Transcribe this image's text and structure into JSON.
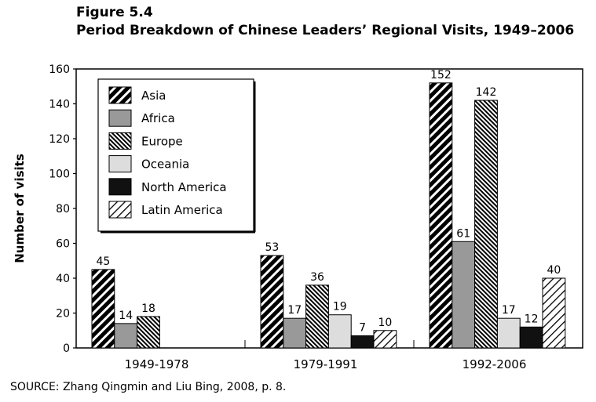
{
  "figure": {
    "label": "Figure 5.4",
    "title": "Period Breakdown of Chinese Leaders’ Regional Visits, 1949–2006",
    "source": "SOURCE: Zhang Qingmin and Liu Bing, 2008, p. 8."
  },
  "chart_data": {
    "type": "bar",
    "title": "Period Breakdown of Chinese Leaders’ Regional Visits, 1949–2006",
    "xlabel": "",
    "ylabel": "Number of visits",
    "ylim": [
      0,
      160
    ],
    "yticks": [
      0,
      20,
      40,
      60,
      80,
      100,
      120,
      140,
      160
    ],
    "categories": [
      "1949-1978",
      "1979-1991",
      "1992-2006"
    ],
    "legend_position": "top-left",
    "grid": false,
    "series": [
      {
        "name": "Asia",
        "fill": "diag-thick",
        "values": [
          45,
          53,
          152
        ]
      },
      {
        "name": "Africa",
        "fill": "#999999",
        "values": [
          14,
          17,
          61
        ]
      },
      {
        "name": "Europe",
        "fill": "hatch-dense",
        "values": [
          18,
          36,
          142
        ]
      },
      {
        "name": "Oceania",
        "fill": "#dddddd",
        "values": [
          0,
          19,
          17
        ]
      },
      {
        "name": "North America",
        "fill": "#111111",
        "values": [
          0,
          7,
          12
        ]
      },
      {
        "name": "Latin America",
        "fill": "diag-thin",
        "values": [
          0,
          10,
          40
        ]
      }
    ],
    "data_labels": [
      [
        "45",
        "14",
        "18",
        "",
        "",
        ""
      ],
      [
        "53",
        "17",
        "36",
        "19",
        "7",
        "10"
      ],
      [
        "152",
        "61",
        "142",
        "17",
        "12",
        "40"
      ]
    ]
  }
}
